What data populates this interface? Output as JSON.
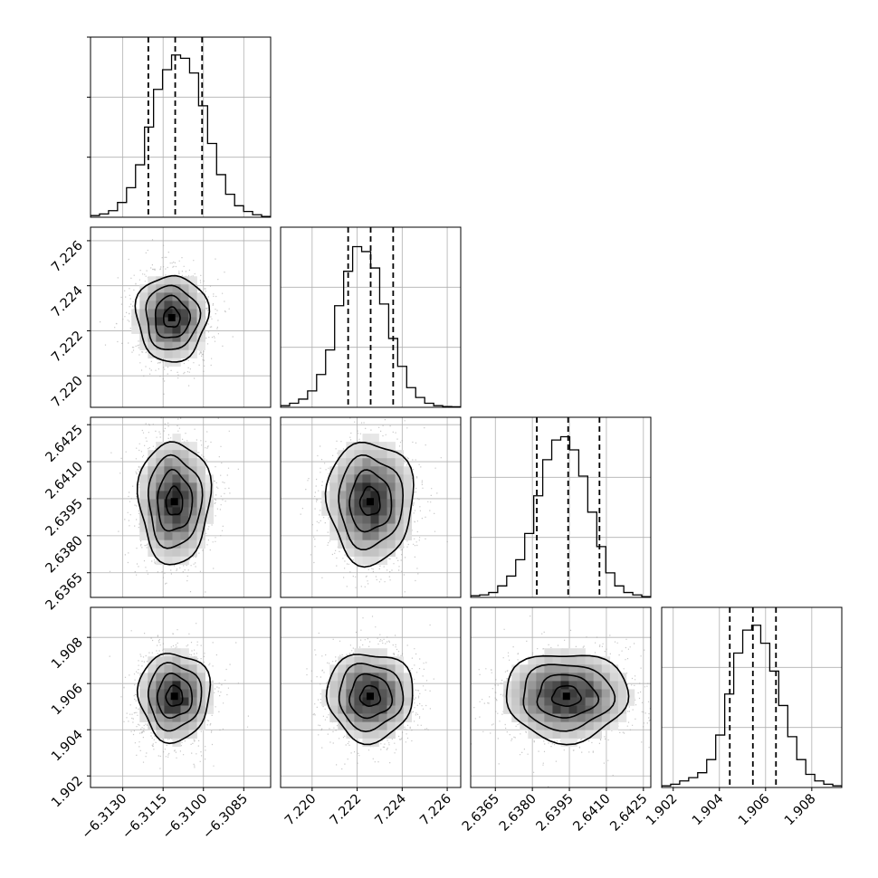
{
  "chart_data": {
    "type": "corner",
    "title": "",
    "parameter_labels": [
      "",
      "",
      "",
      ""
    ],
    "grid": true,
    "params": [
      {
        "index": 0,
        "range": [
          -6.3142,
          -6.3075
        ],
        "ticks": [
          -6.313,
          -6.3115,
          -6.31,
          -6.3085
        ],
        "tick_labels": [
          "−6.3130",
          "−6.3115",
          "−6.3100",
          "−6.3085"
        ],
        "quantiles": [
          -6.31205,
          -6.31105,
          -6.31005
        ],
        "hist": [
          0.01,
          0.02,
          0.04,
          0.09,
          0.18,
          0.32,
          0.55,
          0.78,
          0.9,
          0.99,
          0.97,
          0.88,
          0.68,
          0.45,
          0.26,
          0.14,
          0.07,
          0.035,
          0.015,
          0.005
        ]
      },
      {
        "index": 1,
        "range": [
          7.2186,
          7.2266
        ],
        "ticks": [
          7.22,
          7.222,
          7.224,
          7.226
        ],
        "tick_labels": [
          "7.220",
          "7.222",
          "7.224",
          "7.226"
        ],
        "quantiles": [
          7.2216,
          7.2226,
          7.2236
        ],
        "hist": [
          0.01,
          0.025,
          0.05,
          0.1,
          0.2,
          0.35,
          0.62,
          0.83,
          0.98,
          0.95,
          0.85,
          0.63,
          0.42,
          0.25,
          0.12,
          0.06,
          0.025,
          0.01,
          0.005,
          0.003
        ]
      },
      {
        "index": 2,
        "range": [
          2.6355,
          2.6428
        ],
        "ticks": [
          2.6365,
          2.638,
          2.6395,
          2.641,
          2.6425
        ],
        "tick_labels": [
          "2.6365",
          "2.6380",
          "2.6395",
          "2.6410",
          "2.6425"
        ],
        "quantiles": [
          2.63818,
          2.63945,
          2.64072
        ],
        "hist": [
          0.01,
          0.015,
          0.03,
          0.07,
          0.13,
          0.23,
          0.39,
          0.62,
          0.84,
          0.96,
          0.98,
          0.9,
          0.74,
          0.52,
          0.31,
          0.15,
          0.07,
          0.03,
          0.015,
          0.005
        ]
      },
      {
        "index": 3,
        "range": [
          1.9015,
          1.9093
        ],
        "ticks": [
          1.902,
          1.904,
          1.906,
          1.908
        ],
        "tick_labels": [
          "1.902",
          "1.904",
          "1.906",
          "1.908"
        ],
        "quantiles": [
          1.90445,
          1.90545,
          1.90645
        ],
        "hist": [
          0.01,
          0.02,
          0.04,
          0.06,
          0.09,
          0.17,
          0.32,
          0.57,
          0.82,
          0.96,
          0.99,
          0.88,
          0.71,
          0.5,
          0.31,
          0.17,
          0.08,
          0.04,
          0.02,
          0.01
        ]
      }
    ],
    "pairs": [
      {
        "x": 0,
        "y": 1,
        "peak": [
          -6.31118,
          7.22258
        ],
        "sigma": [
          0.00068,
          0.00098
        ],
        "rho": 0.0
      },
      {
        "x": 0,
        "y": 2,
        "peak": [
          -6.31108,
          2.63938
        ],
        "sigma": [
          0.00068,
          0.00127
        ],
        "rho": 0.0
      },
      {
        "x": 1,
        "y": 2,
        "peak": [
          7.22258,
          2.63938
        ],
        "sigma": [
          0.00098,
          0.00127
        ],
        "rho": 0.0
      },
      {
        "x": 0,
        "y": 3,
        "peak": [
          -6.31108,
          1.90545
        ],
        "sigma": [
          0.00068,
          0.00098
        ],
        "rho": 0.0
      },
      {
        "x": 1,
        "y": 3,
        "peak": [
          7.22258,
          1.90545
        ],
        "sigma": [
          0.00098,
          0.00098
        ],
        "rho": 0.0
      },
      {
        "x": 2,
        "y": 3,
        "peak": [
          2.63938,
          1.90545
        ],
        "sigma": [
          0.00127,
          0.00098
        ],
        "rho": 0.0
      }
    ],
    "contour_levels_sigma": [
      0.5,
      1.0,
      1.5,
      2.0
    ]
  },
  "colors": {
    "line": "#000000",
    "grid": "#b0b0b0",
    "scatter": "#9a9a9a",
    "background": "#ffffff"
  }
}
